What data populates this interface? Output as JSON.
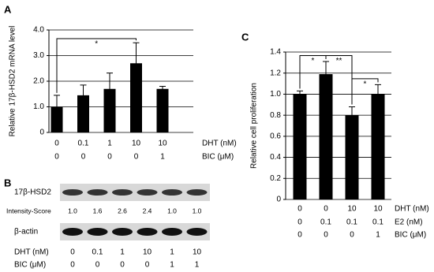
{
  "chart_data": [
    {
      "type": "bar",
      "panel_label": "A",
      "y_label": "Relative 17β-HSD2 mRNA level",
      "values": [
        1.0,
        1.45,
        1.7,
        2.7,
        1.7
      ],
      "errors": [
        0.45,
        0.4,
        0.62,
        0.8,
        0.1
      ],
      "color": "#000000",
      "ylim": [
        0,
        4
      ],
      "yticks": [
        0,
        {
          "value": 1,
          "label": "1.0"
        },
        {
          "value": 2,
          "label": "2.0"
        },
        {
          "value": 3,
          "label": "3.0"
        },
        {
          "value": 4,
          "label": "4.0"
        }
      ],
      "grid": true,
      "annotations": [
        {
          "from": 0,
          "to": 3,
          "label": "*"
        }
      ],
      "conditions": [
        {
          "name": "DHT (nM)",
          "values": [
            "0",
            "0.1",
            "1",
            "10",
            "10"
          ]
        },
        {
          "name": "BIC (μM)",
          "values": [
            "0",
            "0",
            "0",
            "0",
            "1"
          ]
        }
      ]
    },
    {
      "type": "bar",
      "panel_label": "C",
      "y_label": "Relative cell proliferation",
      "values": [
        1.0,
        1.19,
        0.8,
        1.0
      ],
      "errors": [
        0.03,
        0.12,
        0.08,
        0.09
      ],
      "color": "#000000",
      "ylim": [
        0,
        1.4
      ],
      "yticks": [
        0,
        0.2,
        0.4,
        0.6,
        0.8,
        {
          "value": 1,
          "label": "1.0"
        },
        1.2,
        1.4
      ],
      "grid": true,
      "annotations": [
        {
          "from": 0,
          "to": 1,
          "label": "*"
        },
        {
          "from": 1,
          "to": 2,
          "label": "**"
        },
        {
          "from": 2,
          "to": 3,
          "label": "*"
        }
      ],
      "conditions": [
        {
          "name": "DHT (nM)",
          "values": [
            "0",
            "0",
            "10",
            "10"
          ]
        },
        {
          "name": "E2 (nM)",
          "values": [
            "0",
            "0.1",
            "0.1",
            "0.1"
          ]
        },
        {
          "name": "BIC (μM)",
          "values": [
            "0",
            "0",
            "0",
            "1"
          ]
        }
      ]
    }
  ],
  "blot": {
    "panel_label": "B",
    "bands": [
      "17β-HSD2",
      "β-actin"
    ],
    "score_label": "Intensity-Score",
    "scores": [
      "1.0",
      "1.6",
      "2.6",
      "2.4",
      "1.0",
      "1.0"
    ],
    "conditions": [
      {
        "name": "DHT (nM)",
        "values": [
          "0",
          "0.1",
          "1",
          "10",
          "1",
          "10"
        ]
      },
      {
        "name": "BIC (μM)",
        "values": [
          "0",
          "0",
          "0",
          "0",
          "1",
          "1"
        ]
      }
    ]
  }
}
